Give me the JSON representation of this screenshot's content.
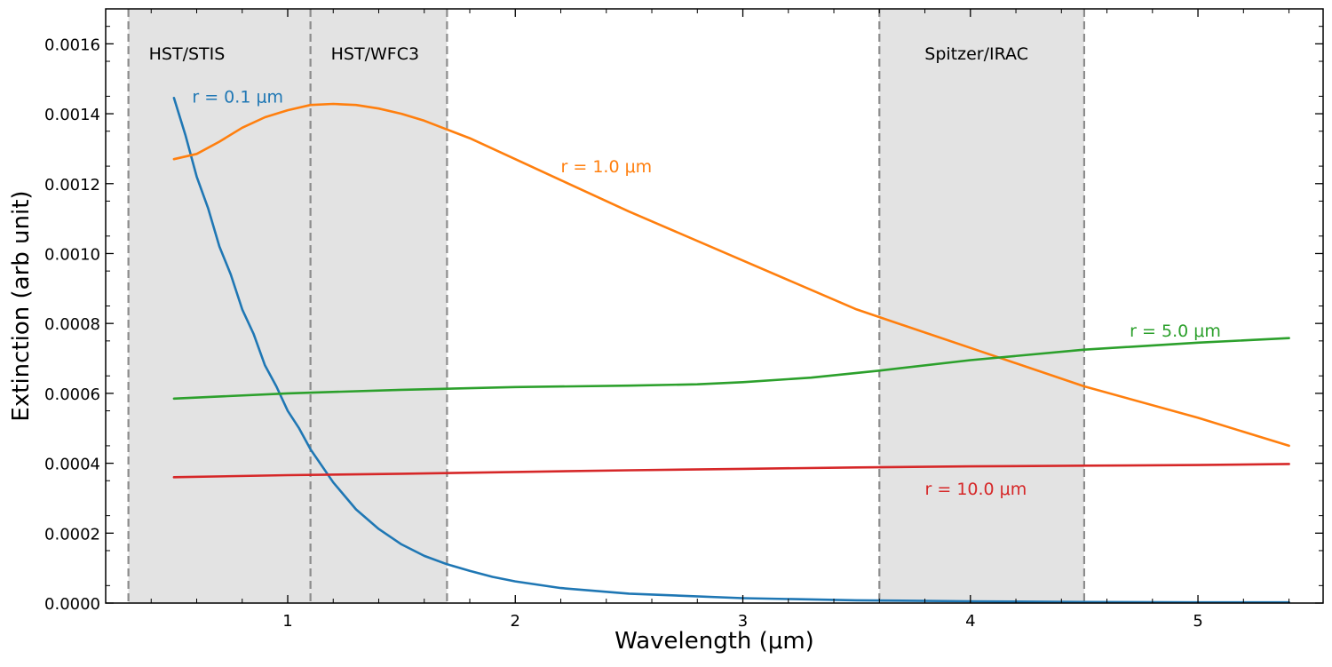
{
  "chart_data": {
    "type": "line",
    "xlabel": "Wavelength (μm)",
    "ylabel": "Extinction (arb unit)",
    "xlim": [
      0.2,
      5.55
    ],
    "ylim": [
      0,
      0.0017
    ],
    "x_ticks": [
      1,
      2,
      3,
      4,
      5
    ],
    "x_tick_labels": [
      "1",
      "2",
      "3",
      "4",
      "5"
    ],
    "y_ticks": [
      0,
      0.0002,
      0.0004,
      0.0006,
      0.0008,
      0.001,
      0.0012,
      0.0014,
      0.0016
    ],
    "y_tick_labels": [
      "0.0000",
      "0.0002",
      "0.0004",
      "0.0006",
      "0.0008",
      "0.0010",
      "0.0012",
      "0.0014",
      "0.0016"
    ],
    "grid": false,
    "legend": "none",
    "bands": [
      {
        "label": "HST/STIS",
        "range": [
          0.3,
          1.1
        ]
      },
      {
        "label": "HST/WFC3",
        "range": [
          1.1,
          1.7
        ]
      },
      {
        "label": "Spitzer/IRAC",
        "range": [
          3.6,
          4.5
        ]
      }
    ],
    "band_color": "#e3e3e3",
    "band_edge_color": "#8c8c8c",
    "series": [
      {
        "name": "r = 0.1 μm",
        "color": "#1f77b4",
        "label_anchor": [
          0.58,
          0.00145
        ],
        "x": [
          0.5,
          0.55,
          0.6,
          0.65,
          0.7,
          0.75,
          0.8,
          0.85,
          0.9,
          0.95,
          1.0,
          1.05,
          1.1,
          1.2,
          1.3,
          1.4,
          1.5,
          1.6,
          1.7,
          1.8,
          1.9,
          2.0,
          2.2,
          2.5,
          3.0,
          3.5,
          4.0,
          4.5,
          5.0,
          5.4
        ],
        "y": [
          0.001445,
          0.00134,
          0.00122,
          0.00113,
          0.00102,
          0.00094,
          0.00084,
          0.00077,
          0.00068,
          0.00062,
          0.00055,
          0.0005,
          0.00044,
          0.000345,
          0.000268,
          0.000212,
          0.000168,
          0.000135,
          0.000111,
          9.2e-05,
          7.5e-05,
          6.2e-05,
          4.3e-05,
          2.7e-05,
          1.4e-05,
          8e-06,
          5e-06,
          3e-06,
          2e-06,
          2e-06
        ]
      },
      {
        "name": "r = 1.0 μm",
        "color": "#ff7f0e",
        "label_anchor": [
          2.2,
          0.00125
        ],
        "x": [
          0.5,
          0.6,
          0.7,
          0.8,
          0.9,
          1.0,
          1.1,
          1.2,
          1.3,
          1.4,
          1.5,
          1.6,
          1.7,
          1.8,
          2.0,
          2.2,
          2.5,
          3.0,
          3.5,
          4.0,
          4.5,
          5.0,
          5.4
        ],
        "y": [
          0.00127,
          0.001285,
          0.00132,
          0.00136,
          0.00139,
          0.00141,
          0.001425,
          0.001428,
          0.001425,
          0.001415,
          0.0014,
          0.00138,
          0.001355,
          0.00133,
          0.00127,
          0.00121,
          0.00112,
          0.00098,
          0.00084,
          0.00073,
          0.00062,
          0.00053,
          0.00045
        ]
      },
      {
        "name": "r = 5.0 μm",
        "color": "#2ca02c",
        "label_anchor": [
          4.7,
          0.00078
        ],
        "x": [
          0.5,
          1.0,
          1.5,
          2.0,
          2.5,
          2.8,
          3.0,
          3.3,
          3.6,
          4.0,
          4.5,
          5.0,
          5.4
        ],
        "y": [
          0.000585,
          0.0006,
          0.00061,
          0.000618,
          0.000622,
          0.000626,
          0.000632,
          0.000645,
          0.000665,
          0.000695,
          0.000725,
          0.000745,
          0.000758
        ]
      },
      {
        "name": "r = 10.0 μm",
        "color": "#d62728",
        "label_anchor": [
          3.8,
          0.000328
        ],
        "x": [
          0.5,
          1.0,
          1.5,
          2.0,
          2.5,
          3.0,
          3.5,
          4.0,
          4.5,
          5.0,
          5.4
        ],
        "y": [
          0.00036,
          0.000366,
          0.00037,
          0.000375,
          0.00038,
          0.000384,
          0.000388,
          0.000391,
          0.000393,
          0.000395,
          0.000398
        ]
      }
    ]
  }
}
